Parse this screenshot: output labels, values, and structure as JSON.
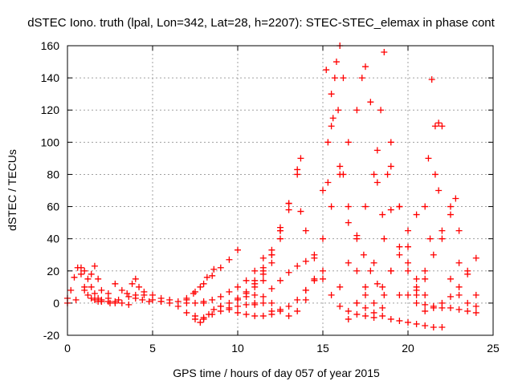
{
  "chart_data": {
    "type": "scatter",
    "title": "dSTEC Iono. truth (lpal, Lon=342, Lat=28, h=2207): STEC-STEC_elemax in phase cont",
    "xlabel": "GPS time / hours of day 057 of year 2015",
    "ylabel": "dSTEC  / TECUs",
    "xlim": [
      0,
      25
    ],
    "ylim": [
      -20,
      160
    ],
    "xticks": [
      0,
      5,
      10,
      15,
      20,
      25
    ],
    "yticks": [
      -20,
      0,
      20,
      40,
      60,
      80,
      100,
      120,
      140,
      160
    ],
    "grid": true,
    "marker": "+",
    "color": "#ff0000",
    "series": [
      {
        "x": [
          0.0,
          0.2,
          0.4,
          0.6,
          0.8,
          1.0,
          1.2,
          1.4,
          1.6,
          1.8,
          2.0
        ],
        "y": [
          3,
          8,
          16,
          22,
          18,
          10,
          5,
          3,
          2,
          1,
          1
        ]
      },
      {
        "x": [
          0.8,
          1.0,
          1.2,
          1.4,
          1.6,
          1.8,
          2.0,
          2.4,
          2.8,
          3.2,
          3.6
        ],
        "y": [
          22,
          20,
          15,
          10,
          6,
          3,
          2,
          1,
          0,
          0,
          -1
        ]
      },
      {
        "x": [
          0.0,
          0.5,
          1.0,
          1.4,
          1.6,
          1.8,
          2.0,
          2.4,
          2.8
        ],
        "y": [
          0,
          2,
          8,
          18,
          23,
          15,
          8,
          3,
          1
        ]
      },
      {
        "x": [
          2.0,
          2.4,
          2.8,
          3.2,
          3.6,
          4.0,
          4.4,
          4.8
        ],
        "y": [
          1,
          6,
          12,
          8,
          4,
          3,
          2,
          1
        ]
      },
      {
        "x": [
          2.5,
          3.0,
          3.5,
          3.8,
          4.0,
          4.2,
          4.5,
          5.0,
          5.5
        ],
        "y": [
          0,
          2,
          6,
          12,
          15,
          10,
          5,
          2,
          1
        ]
      },
      {
        "x": [
          4.0,
          4.5,
          5.0,
          5.5,
          6.0,
          6.5,
          7.0,
          7.5,
          8.0
        ],
        "y": [
          5,
          7,
          5,
          3,
          2,
          1,
          0,
          0,
          1
        ]
      },
      {
        "x": [
          5.5,
          6.0,
          6.5,
          7.0,
          7.5,
          7.8,
          8.0,
          8.3,
          8.6,
          9.0
        ],
        "y": [
          1,
          0,
          -2,
          -6,
          -10,
          -12,
          -10,
          -7,
          -4,
          -2
        ]
      },
      {
        "x": [
          7.0,
          7.4,
          7.8,
          8.2,
          8.6
        ],
        "y": [
          2,
          6,
          10,
          16,
          21
        ]
      },
      {
        "x": [
          7.0,
          7.5,
          8.0,
          8.5,
          9.0,
          9.5,
          10.0
        ],
        "y": [
          3,
          7,
          12,
          17,
          22,
          27,
          33
        ]
      },
      {
        "x": [
          7.5,
          8.0,
          8.5,
          9.0,
          9.5,
          10.0,
          10.5,
          11.0,
          11.5,
          12.0
        ],
        "y": [
          -8,
          -9,
          -7,
          -5,
          -3,
          -2,
          -1,
          -1,
          0,
          0
        ]
      },
      {
        "x": [
          8.0,
          8.5,
          9.0,
          9.5,
          10.0,
          10.5,
          11.0,
          11.5
        ],
        "y": [
          0,
          2,
          4,
          7,
          10,
          14,
          20,
          28
        ]
      },
      {
        "x": [
          9.0,
          9.5,
          10.0,
          10.5,
          11.0,
          11.5,
          12.0,
          12.5
        ],
        "y": [
          -2,
          -4,
          -6,
          -7,
          -8,
          -8,
          -7,
          -5
        ]
      },
      {
        "x": [
          9.5,
          10.0,
          10.5,
          11.0,
          11.5,
          12.0,
          12.5
        ],
        "y": [
          0,
          3,
          7,
          14,
          22,
          33,
          47
        ]
      },
      {
        "x": [
          10.0,
          10.5,
          11.0,
          11.5,
          12.0,
          12.5,
          13.0
        ],
        "y": [
          2,
          6,
          12,
          20,
          30,
          45,
          62
        ]
      },
      {
        "x": [
          10.5,
          11.0,
          11.5,
          12.0,
          12.5,
          13.0,
          13.5
        ],
        "y": [
          4,
          10,
          18,
          30,
          45,
          62,
          83
        ]
      },
      {
        "x": [
          11.0,
          11.5,
          12.0,
          12.5,
          13.0,
          13.5,
          13.7
        ],
        "y": [
          5,
          14,
          25,
          40,
          58,
          80,
          90
        ]
      },
      {
        "x": [
          11.0,
          11.5,
          12.0,
          12.5,
          13.0,
          13.5,
          14.0
        ],
        "y": [
          0,
          4,
          9,
          14,
          19,
          23,
          26
        ]
      },
      {
        "x": [
          12.0,
          12.5,
          13.0,
          13.5,
          14.0,
          14.5,
          15.0
        ],
        "y": [
          -5,
          -4,
          -2,
          2,
          8,
          14,
          20
        ]
      },
      {
        "x": [
          13.7,
          14.0,
          14.5,
          15.0,
          15.5,
          16.0,
          16.5,
          17.0,
          17.5,
          18.0
        ],
        "y": [
          57,
          45,
          28,
          15,
          5,
          -2,
          -5,
          -7,
          -8,
          -9
        ]
      },
      {
        "x": [
          13.0,
          13.5,
          14.0,
          14.5,
          15.0,
          15.3,
          15.5,
          15.8,
          16.0,
          16.2
        ],
        "y": [
          -8,
          -5,
          2,
          15,
          40,
          75,
          110,
          150,
          160,
          140
        ]
      },
      {
        "x": [
          14.0,
          14.5,
          15.0,
          15.3,
          15.5,
          15.7,
          15.9,
          16.2,
          16.5,
          17.0,
          17.5,
          18.0,
          18.5
        ],
        "y": [
          8,
          30,
          70,
          100,
          130,
          140,
          120,
          80,
          50,
          20,
          5,
          0,
          -3
        ]
      },
      {
        "x": [
          15.5,
          16.0,
          16.5,
          17.0,
          17.3,
          17.5,
          17.8,
          18.2,
          18.6,
          19.0,
          19.5
        ],
        "y": [
          60,
          80,
          100,
          120,
          140,
          147,
          125,
          75,
          40,
          20,
          5
        ]
      },
      {
        "x": [
          15.2,
          15.6,
          16.0,
          16.5,
          17.0,
          17.4,
          17.8,
          18.2,
          18.6
        ],
        "y": [
          145,
          115,
          85,
          60,
          42,
          30,
          20,
          12,
          5
        ]
      },
      {
        "x": [
          16.0,
          16.5,
          17.0,
          17.5,
          18.0,
          18.2,
          18.4,
          18.6,
          19.0,
          19.5,
          20.0,
          20.5
        ],
        "y": [
          10,
          25,
          40,
          60,
          80,
          95,
          120,
          156,
          100,
          60,
          25,
          5
        ]
      },
      {
        "x": [
          16.5,
          17.0,
          17.5,
          18.0,
          18.5,
          18.8,
          19.0,
          19.5,
          20.0,
          20.5,
          21.0
        ],
        "y": [
          -10,
          0,
          10,
          25,
          55,
          80,
          85,
          60,
          35,
          15,
          5
        ]
      },
      {
        "x": [
          17.0,
          17.5,
          18.0,
          18.5,
          19.0,
          19.5,
          20.0,
          20.5,
          21.0,
          21.5,
          22.0
        ],
        "y": [
          0,
          -3,
          -6,
          -8,
          -10,
          -11,
          -12,
          -13,
          -14,
          -15,
          -15
        ]
      },
      {
        "x": [
          18.5,
          19.0,
          19.5,
          20.0,
          20.5,
          21.0,
          21.2,
          21.4,
          21.6,
          21.8,
          22.0,
          22.5,
          23.0,
          23.5,
          24.0
        ],
        "y": [
          10,
          20,
          30,
          45,
          55,
          60,
          90,
          139,
          110,
          70,
          40,
          15,
          5,
          0,
          -2
        ]
      },
      {
        "x": [
          19.0,
          19.5,
          20.0,
          20.5,
          21.0,
          21.3,
          21.6,
          21.8,
          22.0,
          22.5,
          23.0
        ],
        "y": [
          58,
          35,
          20,
          10,
          20,
          40,
          80,
          112,
          110,
          60,
          25
        ]
      },
      {
        "x": [
          20.0,
          20.5,
          21.0,
          21.5,
          22.0,
          22.5,
          22.8,
          23.0,
          23.5,
          24.0
        ],
        "y": [
          5,
          8,
          15,
          30,
          45,
          55,
          65,
          45,
          20,
          5
        ]
      },
      {
        "x": [
          21.0,
          21.5,
          22.0,
          22.5,
          23.0,
          23.5,
          24.0
        ],
        "y": [
          -5,
          -3,
          0,
          4,
          10,
          18,
          28
        ]
      },
      {
        "x": [
          20.5,
          21.0,
          21.5,
          22.0,
          22.5,
          23.0,
          23.5,
          24.0
        ],
        "y": [
          0,
          -1,
          -2,
          -3,
          -3,
          -4,
          -5,
          -6
        ]
      }
    ]
  }
}
